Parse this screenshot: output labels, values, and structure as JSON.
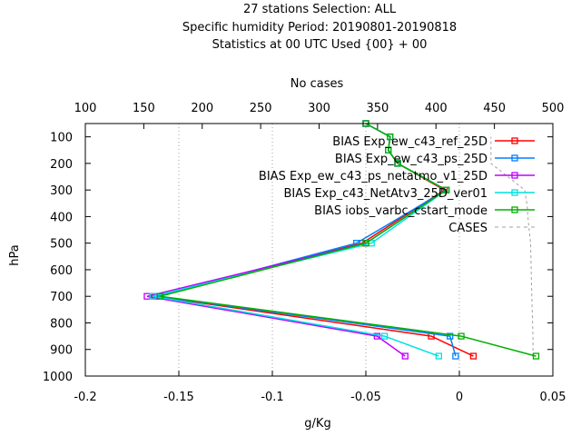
{
  "title_lines": [
    "27 stations Selection: ALL",
    "Specific humidity  Period: 20190801-20190818",
    "Statistics at 00 UTC  Used {00} + 00"
  ],
  "top_axis_label": "No cases",
  "xlabel": "g/Kg",
  "ylabel": "hPa",
  "chart_data": {
    "type": "line",
    "x_range": [
      -0.2,
      0.05
    ],
    "y_range": [
      1000,
      50
    ],
    "y_reversed": true,
    "x_ticks": [
      -0.2,
      -0.15,
      -0.1,
      -0.05,
      0,
      0.05
    ],
    "x_tick_labels": [
      "-0.2",
      "-0.15",
      "-0.1",
      "-0.05",
      "0",
      "0.05"
    ],
    "y_ticks": [
      100,
      200,
      300,
      400,
      500,
      600,
      700,
      800,
      900,
      1000
    ],
    "y_tick_labels": [
      "100",
      "200",
      "300",
      "400",
      "500",
      "600",
      "700",
      "800",
      "900",
      "1000"
    ],
    "top_axis_range": [
      100,
      500
    ],
    "top_ticks": [
      100,
      150,
      200,
      250,
      300,
      350,
      400,
      450,
      500
    ],
    "top_tick_labels": [
      "100",
      "150",
      "200",
      "250",
      "300",
      "350",
      "400",
      "450",
      "500"
    ],
    "grid": "dotted vertical lines at x ticks",
    "legend_position": "top-right",
    "levels": [
      925,
      850,
      700,
      500,
      300,
      200,
      150,
      100,
      50
    ],
    "series": [
      {
        "name": "BIAS Exp_ew_c43_ref_25D",
        "color": "#ff0000",
        "marker": "square",
        "x": [
          0.0075,
          -0.015,
          -0.163,
          -0.052,
          -0.008,
          -0.033,
          -0.038,
          -0.037,
          -0.05
        ],
        "y": [
          925,
          850,
          700,
          500,
          300,
          200,
          150,
          100,
          50
        ]
      },
      {
        "name": "BIAS Exp_ew_c43_ps_25D",
        "color": "#0080ff",
        "marker": "square",
        "x": [
          -0.002,
          -0.005,
          -0.162,
          -0.055,
          -0.007,
          -0.033,
          -0.038,
          -0.037,
          -0.05
        ],
        "y": [
          925,
          850,
          700,
          500,
          300,
          200,
          150,
          100,
          50
        ]
      },
      {
        "name": "BIAS Exp_ew_c43_ps_netatmo_v1_25D",
        "color": "#c000ff",
        "marker": "square",
        "x": [
          -0.029,
          -0.044,
          -0.167,
          -0.05,
          -0.007,
          -0.033,
          -0.038,
          -0.037,
          -0.05
        ],
        "y": [
          925,
          850,
          700,
          500,
          300,
          200,
          150,
          100,
          50
        ]
      },
      {
        "name": "BIAS Exp_c43_NetAtv3_25D_ver01",
        "color": "#00e0e0",
        "marker": "square",
        "x": [
          -0.011,
          -0.04,
          -0.164,
          -0.047,
          -0.007,
          -0.033,
          -0.038,
          -0.037,
          -0.05
        ],
        "y": [
          925,
          850,
          700,
          500,
          300,
          200,
          150,
          100,
          50
        ]
      },
      {
        "name": "BIAS iobs_varbc_cstart_mode",
        "color": "#00b000",
        "marker": "square",
        "x": [
          0.041,
          0.001,
          -0.16,
          -0.05,
          -0.007,
          -0.033,
          -0.038,
          -0.037,
          -0.05
        ],
        "y": [
          925,
          850,
          700,
          500,
          300,
          200,
          150,
          100,
          50
        ]
      }
    ],
    "cases_series": {
      "name": "CASES",
      "color": "#a0a0a0",
      "dash": "dashed",
      "axis": "top",
      "x": [
        483,
        483,
        482,
        481,
        479,
        478,
        476,
        447,
        447
      ],
      "y": [
        925,
        850,
        700,
        500,
        420,
        360,
        300,
        200,
        100
      ]
    }
  }
}
